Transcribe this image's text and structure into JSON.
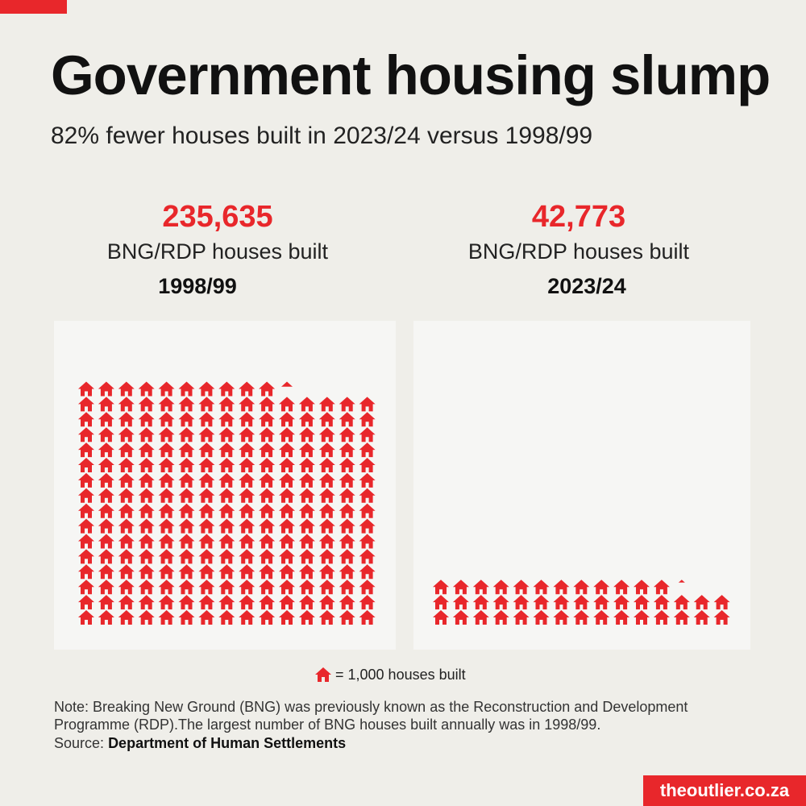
{
  "header": {
    "title": "Government housing slump",
    "subtitle": "82% fewer houses built in 2023/24 versus 1998/99"
  },
  "stats": [
    {
      "value": "235,635",
      "label": "BNG/RDP houses built",
      "year": "1998/99"
    },
    {
      "value": "42,773",
      "label": "BNG/RDP houses built",
      "year": "2023/24"
    }
  ],
  "legend": {
    "text": "= 1,000 houses built",
    "icon": "house-icon"
  },
  "footer": {
    "note": "Note: Breaking New Ground (BNG) was previously known as the Reconstruction and Development Programme (RDP).The largest number of BNG houses built annually was in 1998/99.",
    "source_prefix": "Source:",
    "source_name": "Department of Human Settlements",
    "brand": "theoutlier.co.za"
  },
  "colors": {
    "accent": "#e8272b",
    "background": "#efeee9",
    "panel": "#f6f6f4"
  },
  "chart_data": [
    {
      "type": "pictogram",
      "category": "1998/99",
      "value": 235635,
      "unit_per_icon": 1000,
      "icons_per_row": 15,
      "full_icons": 235,
      "partial_icon_fraction": 0.635
    },
    {
      "type": "pictogram",
      "category": "2023/24",
      "value": 42773,
      "unit_per_icon": 1000,
      "icons_per_row": 15,
      "full_icons": 42,
      "partial_icon_fraction": 0.773
    }
  ]
}
